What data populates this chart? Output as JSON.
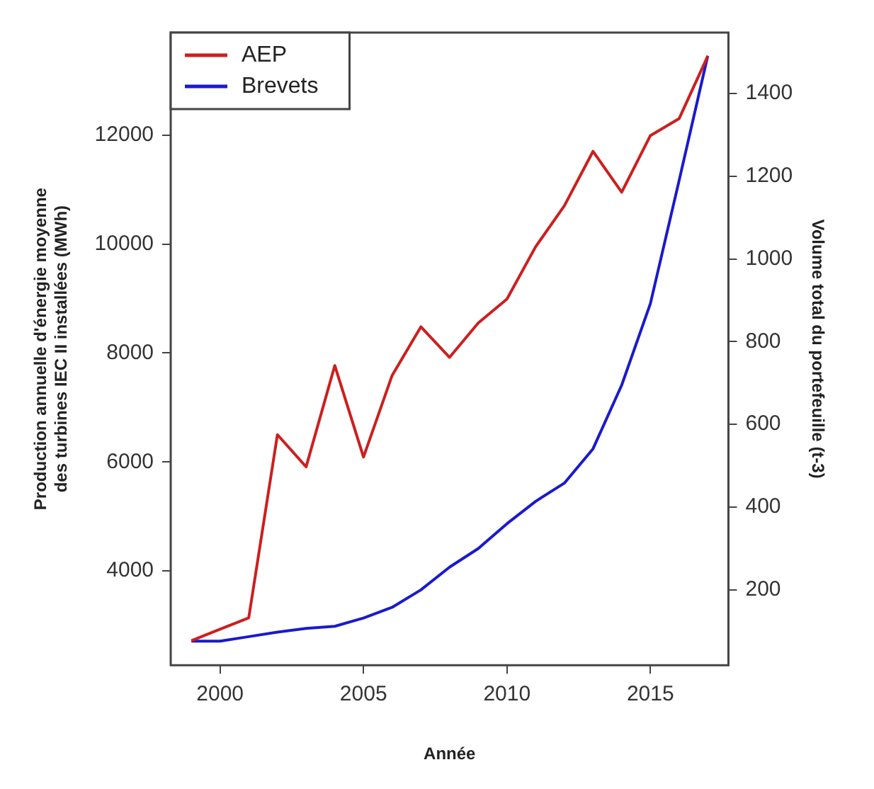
{
  "chart_data": {
    "type": "line",
    "xlabel": "Année",
    "ylabel": "Production annuelle d'énergie moyenne\ndes turbines IEC II installées (MWh)",
    "y2label": "Volume total du portefeuille (t-3)",
    "x": [
      1999,
      2000,
      2001,
      2002,
      2003,
      2004,
      2005,
      2006,
      2007,
      2008,
      2009,
      2010,
      2011,
      2012,
      2013,
      2014,
      2015,
      2016,
      2017
    ],
    "series": [
      {
        "name": "AEP",
        "color": "#cc1f1f",
        "values": [
          2720,
          2930,
          3140,
          6500,
          5910,
          7770,
          6090,
          7590,
          8480,
          7920,
          8550,
          8990,
          9950,
          10700,
          11700,
          10950,
          11990,
          12300,
          13450
        ]
      },
      {
        "name": "Brevets",
        "color": "#1a1acc",
        "axis": "y2",
        "values": [
          76,
          76,
          87,
          98,
          107,
          112,
          132,
          158,
          200,
          255,
          300,
          360,
          414,
          458,
          541,
          695,
          892,
          1189,
          1491
        ]
      }
    ],
    "xlim": [
      1998.28,
      2017.72
    ],
    "xticks": [
      2000,
      2005,
      2010,
      2015
    ],
    "ylim": [
      2270,
      13880
    ],
    "yticks": [
      4000,
      6000,
      8000,
      10000,
      12000
    ],
    "y2lim": [
      18,
      1547
    ],
    "y2ticks": [
      200,
      400,
      600,
      800,
      1000,
      1200,
      1400
    ],
    "legend": "top left",
    "marker": "none",
    "line_style": "solid"
  }
}
